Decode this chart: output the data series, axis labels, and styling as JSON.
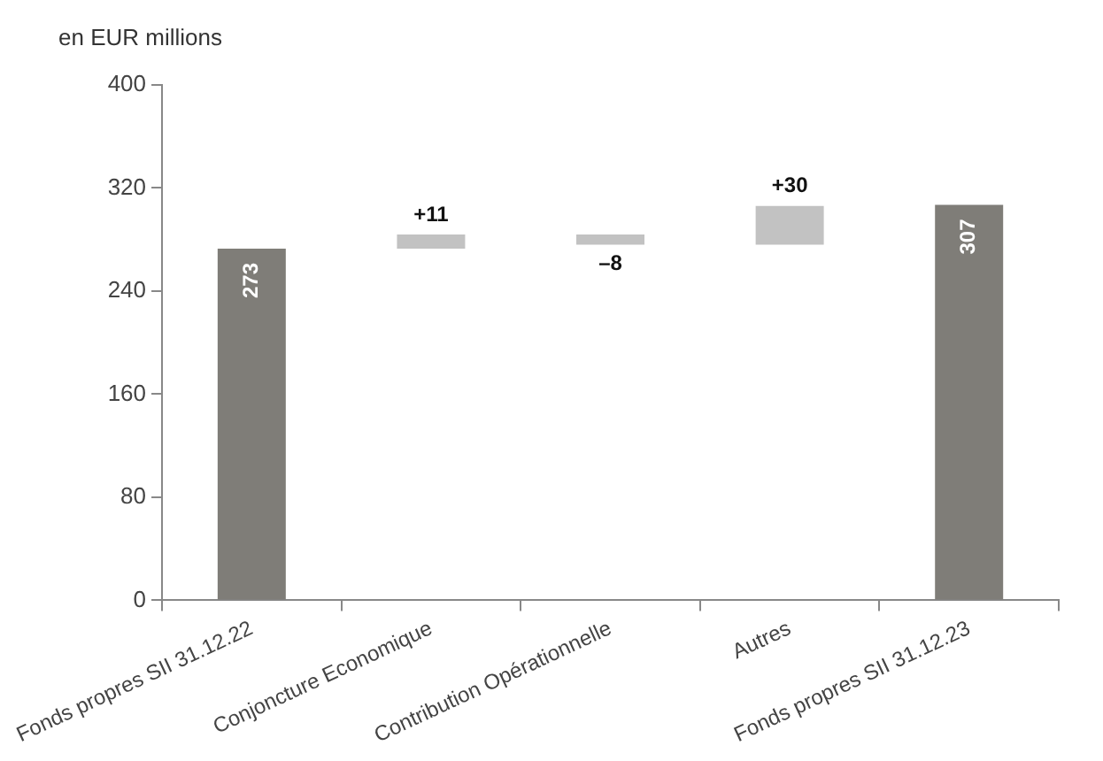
{
  "chart_data": {
    "type": "bar",
    "ylabel": "en EUR millions",
    "categories": [
      "Fonds propres SII 31.12.22",
      "Conjoncture Economique",
      "Contribution Opérationnelle",
      "Autres",
      "Fonds propres SII 31.12.23"
    ],
    "base": [
      0,
      273,
      284,
      276,
      0
    ],
    "values": [
      273,
      11,
      -8,
      30,
      307
    ],
    "colors": [
      "#7f7d78",
      "#c2c2c2",
      "#c2c2c2",
      "#c2c2c2",
      "#7f7d78"
    ],
    "value_labels": [
      "273",
      "+11",
      "–8",
      "+30",
      "307"
    ],
    "ylim": [
      0,
      400
    ],
    "yticks": [
      0,
      80,
      160,
      240,
      320,
      400
    ],
    "grid": false,
    "legend": false
  }
}
